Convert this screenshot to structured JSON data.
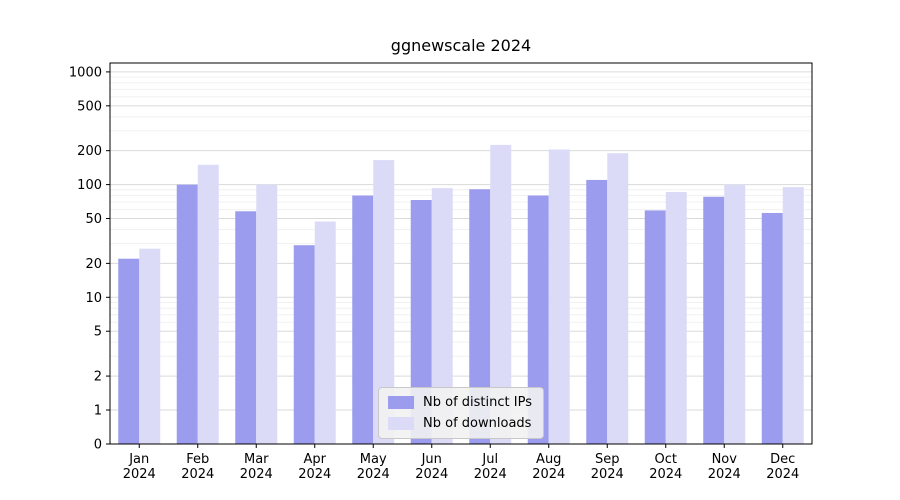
{
  "title": "ggnewscale 2024",
  "chart_data": {
    "type": "bar",
    "title": "ggnewscale 2024",
    "categories": [
      "Jan",
      "Feb",
      "Mar",
      "Apr",
      "May",
      "Jun",
      "Jul",
      "Aug",
      "Sep",
      "Oct",
      "Nov",
      "Dec"
    ],
    "year": "2024",
    "series": [
      {
        "name": "Nb of distinct IPs",
        "color": "#9c9cee",
        "values": [
          22,
          100,
          58,
          29,
          80,
          73,
          91,
          80,
          110,
          59,
          78,
          56
        ]
      },
      {
        "name": "Nb of downloads",
        "color": "#dbdbf8",
        "values": [
          27,
          150,
          100,
          47,
          165,
          93,
          225,
          205,
          190,
          86,
          100,
          95
        ]
      }
    ],
    "y_ticks": [
      0,
      1,
      2,
      5,
      10,
      20,
      50,
      100,
      200,
      500,
      1000
    ],
    "y_scale": "symlog",
    "ylim": [
      0,
      1300
    ],
    "xlabel": "",
    "ylabel": "",
    "grid": "horizontal",
    "legend_position": "lower center"
  }
}
